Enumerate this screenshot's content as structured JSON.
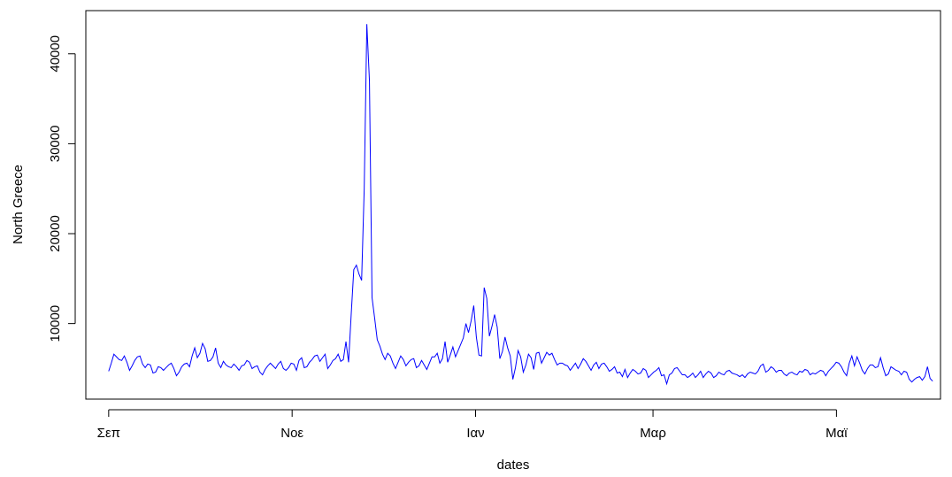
{
  "chart_data": {
    "type": "line",
    "title": "",
    "xlabel": "dates",
    "ylabel": "North Greece",
    "x_ticks": [
      {
        "label": "Σεπ",
        "value": 0
      },
      {
        "label": "Νοε",
        "value": 61
      },
      {
        "label": "Ιαν",
        "value": 122
      },
      {
        "label": "Μαρ",
        "value": 181
      },
      {
        "label": "Μαϊ",
        "value": 242
      }
    ],
    "y_ticks": [
      10000,
      20000,
      30000,
      40000
    ],
    "xlim": [
      -7.6,
      276.6
    ],
    "ylim": [
      1600,
      44800
    ],
    "grid": false,
    "legend": "none",
    "color": "#0000ff",
    "series": [
      {
        "values": [
          4700,
          5600,
          6600,
          6300,
          6000,
          5900,
          6400,
          5700,
          4800,
          5300,
          5900,
          6300,
          6400,
          5500,
          5100,
          5500,
          5400,
          4500,
          4600,
          5200,
          5100,
          4800,
          5100,
          5400,
          5600,
          5000,
          4200,
          4600,
          5200,
          5500,
          5600,
          5200,
          6400,
          7300,
          6200,
          6700,
          7800,
          7200,
          5800,
          5900,
          6300,
          7300,
          5600,
          5100,
          5800,
          5400,
          5200,
          5100,
          5500,
          5200,
          4800,
          5300,
          5400,
          5900,
          5700,
          5000,
          5200,
          5300,
          4600,
          4300,
          4900,
          5300,
          5600,
          5300,
          5000,
          5500,
          5800,
          5000,
          4800,
          5100,
          5600,
          5500,
          4800,
          5900,
          6200,
          5100,
          5200,
          5700,
          6000,
          6400,
          6500,
          5800,
          6200,
          6600,
          5000,
          5400,
          5900,
          6100,
          6600,
          5800,
          6000,
          8000,
          5700,
          11000,
          16000,
          16500,
          15500,
          14800,
          25000,
          43300,
          37000,
          12900,
          10600,
          8200,
          7500,
          6600,
          6000,
          6700,
          6400,
          5600,
          5000,
          5700,
          6400,
          6000,
          5300,
          5700,
          6000,
          6100,
          5100,
          5300,
          5900,
          5400,
          4900,
          5600,
          6300,
          6300,
          6700,
          5600,
          6100,
          8000,
          5700,
          6500,
          7400,
          6300,
          7000,
          7700,
          8400,
          10000,
          9000,
          10300,
          12000,
          8500,
          6500,
          6400,
          14000,
          12800,
          8600,
          9700,
          11000,
          9600,
          6100,
          6900,
          8500,
          7300,
          6400,
          3800,
          5100,
          7000,
          6300,
          4600,
          5400,
          6600,
          6200,
          4900,
          6700,
          6800,
          5600,
          6200,
          6800,
          6500,
          6700,
          6000,
          5400,
          5600,
          5600,
          5400,
          5300,
          4800,
          5200,
          5600,
          5000,
          5500,
          6100,
          5800,
          5300,
          4800,
          5400,
          5700,
          5000,
          5500,
          5600,
          5200,
          4700,
          4900,
          5200,
          4500,
          4600,
          4100,
          4900,
          4000,
          4500,
          4900,
          4700,
          4400,
          4500,
          5000,
          4800,
          4000,
          4300,
          4600,
          4800,
          5100,
          4200,
          4300,
          3300,
          4300,
          4500,
          5000,
          5100,
          4700,
          4300,
          4300,
          4000,
          4200,
          4500,
          4000,
          4300,
          4700,
          4000,
          4400,
          4700,
          4500,
          4000,
          4200,
          4600,
          4400,
          4300,
          4700,
          4800,
          4500,
          4400,
          4300,
          4100,
          4300,
          4000,
          4400,
          4600,
          4500,
          4400,
          4700,
          5300,
          5500,
          4600,
          4800,
          5200,
          5000,
          4600,
          4800,
          4800,
          4400,
          4200,
          4500,
          4600,
          4400,
          4300,
          4700,
          4600,
          4900,
          4800,
          4300,
          4500,
          4400,
          4600,
          4800,
          4700,
          4200,
          4700,
          5000,
          5300,
          5700,
          5600,
          5200,
          4600,
          4200,
          5600,
          6400,
          5300,
          6300,
          5600,
          4800,
          4400,
          5000,
          5400,
          5400,
          5100,
          5200,
          6200,
          5100,
          4200,
          4400,
          5200,
          5000,
          4800,
          4700,
          4300,
          4700,
          4600,
          3800,
          3500,
          3800,
          4000,
          4100,
          3700,
          4100,
          5200,
          3900,
          3600
        ]
      }
    ]
  }
}
